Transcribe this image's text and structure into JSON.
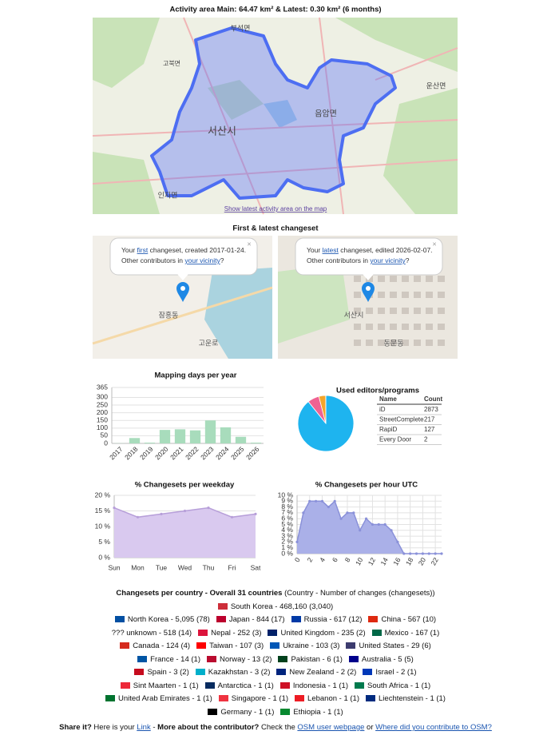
{
  "header": {
    "title": "Activity area Main: 64.47 km² & Latest: 0.30 km² (6 months)",
    "map_link": "Show latest activity area on the map",
    "map_labels": [
      "서산시",
      "음암면",
      "인지면",
      "부석면",
      "고북면",
      "운산면"
    ]
  },
  "changesets": {
    "title": "First & latest changeset",
    "close": "×",
    "first": {
      "line1": [
        {
          "text": "Your "
        },
        {
          "text": "first",
          "link": true
        },
        {
          "text": " changeset, created 2017-01-24."
        }
      ],
      "line2": [
        {
          "text": "Other contributors in "
        },
        {
          "text": "your vicinity",
          "link": true
        },
        {
          "text": "?"
        }
      ],
      "map_labels": [
        "잠홍동",
        "고운로"
      ]
    },
    "latest": {
      "line1": [
        {
          "text": "Your "
        },
        {
          "text": "latest",
          "link": true
        },
        {
          "text": " changeset, edited 2026-02-07."
        }
      ],
      "line2": [
        {
          "text": "Other contributors in "
        },
        {
          "text": "your vicinity",
          "link": true
        },
        {
          "text": "?"
        }
      ],
      "map_labels": [
        "서산시",
        "동문동"
      ]
    }
  },
  "chart_data": [
    {
      "type": "bar",
      "title": "Mapping days per year",
      "categories": [
        "2017",
        "2018",
        "2019",
        "2020",
        "2021",
        "2022",
        "2023",
        "2024",
        "2025",
        "2026"
      ],
      "values": [
        1,
        35,
        5,
        88,
        92,
        85,
        150,
        105,
        43,
        5
      ],
      "color": "#a8dcbc",
      "ylim": [
        0,
        365
      ],
      "yticks": [
        0,
        50,
        100,
        150,
        200,
        250,
        300,
        365
      ],
      "grid": true
    },
    {
      "type": "pie",
      "title": "Used editors/programs",
      "columns": [
        "Name",
        "Count"
      ],
      "categories": [
        "iD",
        "StreetComplete",
        "RapiD",
        "Every Door"
      ],
      "values": [
        2873,
        217,
        127,
        2
      ],
      "colors": [
        "#1eb4ef",
        "#f06292",
        "#f4a52a",
        "#66bb6a"
      ]
    },
    {
      "type": "area",
      "title": "% Changesets per weekday",
      "categories": [
        "Sun",
        "Mon",
        "Tue",
        "Wed",
        "Thu",
        "Fri",
        "Sat"
      ],
      "values": [
        16,
        13,
        14,
        15,
        16,
        13,
        14
      ],
      "color": "#d9c9ef",
      "stroke": "#b79fd9",
      "ylim": [
        0,
        20
      ],
      "yticks": [
        {
          "value": 0,
          "label": "0 %"
        },
        {
          "value": 5,
          "label": "5 %"
        },
        {
          "value": 10,
          "label": "10 %"
        },
        {
          "value": 15,
          "label": "15 %"
        },
        {
          "value": 20,
          "label": "20 %"
        }
      ],
      "grid": true
    },
    {
      "type": "area",
      "title": "% Changesets per hour UTC",
      "x": [
        0,
        1,
        2,
        3,
        4,
        5,
        6,
        7,
        8,
        9,
        10,
        11,
        12,
        13,
        14,
        15,
        16,
        17,
        18,
        19,
        20,
        21,
        22,
        23
      ],
      "values": [
        2,
        7,
        9,
        9,
        9,
        8,
        9,
        6,
        7,
        7,
        4,
        6,
        5,
        5,
        5,
        4,
        2,
        0,
        0,
        0,
        0,
        0,
        0,
        0
      ],
      "color": "#aab0e8",
      "stroke": "#8a91d9",
      "xlim": [
        0,
        23
      ],
      "xticks": [
        0,
        2,
        4,
        6,
        8,
        10,
        12,
        14,
        16,
        18,
        20,
        22
      ],
      "ylim": [
        0,
        10
      ],
      "yticks": [
        {
          "value": 0,
          "label": "0 %"
        },
        {
          "value": 1,
          "label": "1 %"
        },
        {
          "value": 2,
          "label": "2 %"
        },
        {
          "value": 3,
          "label": "3 %"
        },
        {
          "value": 4,
          "label": "4 %"
        },
        {
          "value": 5,
          "label": "5 %"
        },
        {
          "value": 6,
          "label": "6 %"
        },
        {
          "value": 7,
          "label": "7 %"
        },
        {
          "value": 8,
          "label": "8 %"
        },
        {
          "value": 9,
          "label": "9 %"
        },
        {
          "value": 10,
          "label": "10 %"
        }
      ],
      "grid": true
    }
  ],
  "countries": {
    "title": "Changesets per country - Overall 31 countries",
    "subtitle": "(Country - Number of changes (changesets))",
    "rows": [
      [
        {
          "text": "South Korea - 468,160 (3,040)",
          "flag": "#cd2e3a"
        }
      ],
      [
        {
          "text": "North Korea - 5,095 (78)",
          "flag": "#024fa2"
        },
        {
          "text": "Japan - 844 (17)",
          "flag": "#bc002d"
        },
        {
          "text": "Russia - 617 (12)",
          "flag": "#0039a6"
        },
        {
          "text": "China - 567 (10)",
          "flag": "#de2910"
        }
      ],
      [
        {
          "text": "??? unknown - 518 (14)"
        },
        {
          "text": "Nepal - 252 (3)",
          "flag": "#dc143c"
        },
        {
          "text": "United Kingdom - 235 (2)",
          "flag": "#012169"
        },
        {
          "text": "Mexico - 167 (1)",
          "flag": "#006847"
        }
      ],
      [
        {
          "text": "Canada - 124 (4)",
          "flag": "#d52b1e"
        },
        {
          "text": "Taiwan - 107 (3)",
          "flag": "#fe0000"
        },
        {
          "text": "Ukraine - 103 (3)",
          "flag": "#0057b7"
        },
        {
          "text": "United States - 29 (6)",
          "flag": "#3c3b6e"
        }
      ],
      [
        {
          "text": "France - 14 (1)",
          "flag": "#0055a4"
        },
        {
          "text": "Norway - 13 (2)",
          "flag": "#ba0c2f"
        },
        {
          "text": "Pakistan - 6 (1)",
          "flag": "#01411c"
        },
        {
          "text": "Australia - 5 (5)",
          "flag": "#00008b"
        }
      ],
      [
        {
          "text": "Spain - 3 (2)",
          "flag": "#c60b1e"
        },
        {
          "text": "Kazakhstan - 3 (2)",
          "flag": "#00afca"
        },
        {
          "text": "New Zealand - 2 (2)",
          "flag": "#00247d"
        },
        {
          "text": "Israel - 2 (1)",
          "flag": "#0038b8"
        }
      ],
      [
        {
          "text": "Sint Maarten - 1 (1)",
          "flag": "#ed2939"
        },
        {
          "text": "Antarctica - 1 (1)",
          "flag": "#072b5f"
        },
        {
          "text": "Indonesia - 1 (1)",
          "flag": "#ce1126"
        },
        {
          "text": "South Africa - 1 (1)",
          "flag": "#007a4d"
        }
      ],
      [
        {
          "text": "United Arab Emirates - 1 (1)",
          "flag": "#00732f"
        },
        {
          "text": "Singapore - 1 (1)",
          "flag": "#ef3340"
        },
        {
          "text": "Lebanon - 1 (1)",
          "flag": "#ed1c24"
        },
        {
          "text": "Liechtenstein - 1 (1)",
          "flag": "#002b7f"
        }
      ],
      [
        {
          "text": "Germany - 1 (1)",
          "flag": "#000000"
        },
        {
          "text": "Ethiopia - 1 (1)",
          "flag": "#078930"
        }
      ]
    ]
  },
  "footer": [
    {
      "text": "Share it?",
      "bold": true
    },
    {
      "text": " Here is your "
    },
    {
      "text": "Link",
      "link": true
    },
    {
      "text": " - "
    },
    {
      "text": "More about the contributor?",
      "bold": true
    },
    {
      "text": " Check the "
    },
    {
      "text": "OSM user webpage",
      "link": true
    },
    {
      "text": " or "
    },
    {
      "text": "Where did you contribute to OSM?",
      "link": true
    }
  ]
}
